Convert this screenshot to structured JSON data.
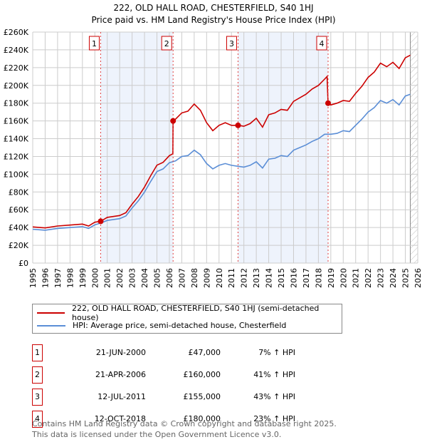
{
  "chart_data": {
    "type": "line",
    "title": "222, OLD HALL ROAD, CHESTERFIELD, S40 1HJ",
    "subtitle": "Price paid vs. HM Land Registry's House Price Index (HPI)",
    "xlim": [
      1995,
      2026
    ],
    "ylim": [
      0,
      260000
    ],
    "y_ticks": [
      0,
      20000,
      40000,
      60000,
      80000,
      100000,
      120000,
      140000,
      160000,
      180000,
      200000,
      220000,
      240000,
      260000
    ],
    "y_tick_labels": [
      "£0",
      "£20K",
      "£40K",
      "£60K",
      "£80K",
      "£100K",
      "£120K",
      "£140K",
      "£160K",
      "£180K",
      "£200K",
      "£220K",
      "£240K",
      "£260K"
    ],
    "x_ticks": [
      1995,
      1996,
      1997,
      1998,
      1999,
      2000,
      2001,
      2002,
      2003,
      2004,
      2005,
      2006,
      2007,
      2008,
      2009,
      2010,
      2011,
      2012,
      2013,
      2014,
      2015,
      2016,
      2017,
      2018,
      2019,
      2020,
      2021,
      2022,
      2023,
      2024,
      2025,
      2026
    ],
    "x_tick_labels": [
      "1995",
      "1996",
      "1997",
      "1998",
      "1999",
      "2000",
      "2001",
      "2002",
      "2003",
      "2004",
      "2005",
      "2006",
      "2007",
      "2008",
      "2009",
      "2010",
      "2011",
      "2012",
      "2013",
      "2014",
      "2015",
      "2016",
      "2017",
      "2018",
      "2019",
      "2020",
      "2021",
      "2022",
      "2023",
      "2024",
      "2025",
      "2026"
    ],
    "grid": true,
    "forecast_hatch_from": 2025.4,
    "shaded_ranges": [
      [
        2000.47,
        2006.3
      ],
      [
        2011.53,
        2018.78
      ]
    ],
    "series": [
      {
        "name": "222, OLD HALL ROAD, CHESTERFIELD, S40 1HJ (semi-detached house)",
        "color": "#cc0000",
        "x": [
          1995,
          1996,
          1997,
          1998,
          1999,
          1999.5,
          2000,
          2000.47,
          2001,
          2002,
          2002.5,
          2003,
          2003.5,
          2004,
          2004.5,
          2005,
          2005.5,
          2006,
          2006.28,
          2006.3,
          2006.5,
          2007,
          2007.5,
          2008,
          2008.5,
          2009,
          2009.5,
          2010,
          2010.5,
          2011,
          2011.53,
          2012,
          2012.5,
          2013,
          2013.5,
          2014,
          2014.5,
          2015,
          2015.5,
          2016,
          2016.5,
          2017,
          2017.5,
          2018,
          2018.5,
          2018.7,
          2018.78,
          2019,
          2019.5,
          2020,
          2020.5,
          2021,
          2021.5,
          2022,
          2022.5,
          2023,
          2023.5,
          2024,
          2024.5,
          2025,
          2025.4
        ],
        "y": [
          40700,
          39600,
          41700,
          42800,
          43900,
          41700,
          46000,
          47000,
          51400,
          53500,
          56700,
          66300,
          74900,
          85600,
          98400,
          110200,
          113400,
          120900,
          123000,
          160000,
          162000,
          169000,
          171000,
          179000,
          172000,
          158000,
          149000,
          155000,
          158000,
          155000,
          155000,
          154000,
          157000,
          163000,
          153000,
          167000,
          169000,
          173000,
          172000,
          182000,
          186000,
          190000,
          196000,
          200000,
          207000,
          210000,
          180000,
          178000,
          180000,
          183000,
          182000,
          191000,
          199000,
          209000,
          215000,
          225000,
          221000,
          226000,
          219000,
          231000,
          234000
        ]
      },
      {
        "name": "HPI: Average price, semi-detached house, Chesterfield",
        "color": "#5b8ed6",
        "x": [
          1995,
          1996,
          1997,
          1998,
          1999,
          1999.5,
          2000,
          2000.47,
          2001,
          2002,
          2002.5,
          2003,
          2003.5,
          2004,
          2004.5,
          2005,
          2005.5,
          2006,
          2006.5,
          2007,
          2007.5,
          2008,
          2008.5,
          2009,
          2009.5,
          2010,
          2010.5,
          2011,
          2011.5,
          2012,
          2012.5,
          2013,
          2013.5,
          2014,
          2014.5,
          2015,
          2015.5,
          2016,
          2016.5,
          2017,
          2017.5,
          2018,
          2018.5,
          2019,
          2019.5,
          2020,
          2020.5,
          2021,
          2021.5,
          2022,
          2022.5,
          2023,
          2023.5,
          2024,
          2024.5,
          2025,
          2025.4
        ],
        "y": [
          38000,
          37000,
          39000,
          40000,
          41000,
          39000,
          43000,
          45000,
          48000,
          50000,
          53000,
          62000,
          70000,
          80000,
          92000,
          103000,
          106000,
          113000,
          115000,
          120000,
          121000,
          127000,
          122000,
          112000,
          106000,
          110000,
          112000,
          110000,
          109000,
          108000,
          110000,
          114000,
          107000,
          117000,
          118000,
          121000,
          120000,
          127000,
          130000,
          133000,
          137000,
          140000,
          145000,
          145000,
          146000,
          149000,
          148000,
          155000,
          162000,
          170000,
          175000,
          183000,
          180000,
          184000,
          178000,
          188000,
          190000
        ]
      }
    ],
    "sales": [
      {
        "label": "1",
        "x": 2000.47,
        "y": 47000,
        "date": "21-JUN-2000",
        "price": "£47,000",
        "hpi": "7% ↑ HPI"
      },
      {
        "label": "2",
        "x": 2006.3,
        "y": 160000,
        "date": "21-APR-2006",
        "price": "£160,000",
        "hpi": "41% ↑ HPI"
      },
      {
        "label": "3",
        "x": 2011.53,
        "y": 155000,
        "date": "12-JUL-2011",
        "price": "£155,000",
        "hpi": "43% ↑ HPI"
      },
      {
        "label": "4",
        "x": 2018.78,
        "y": 180000,
        "date": "12-OCT-2018",
        "price": "£180,000",
        "hpi": "23% ↑ HPI"
      }
    ]
  },
  "legend": {
    "property": "222, OLD HALL ROAD, CHESTERFIELD, S40 1HJ (semi-detached house)",
    "hpi": "HPI: Average price, semi-detached house, Chesterfield"
  },
  "footer": {
    "line1": "Contains HM Land Registry data © Crown copyright and database right 2025.",
    "line2": "This data is licensed under the Open Government Licence v3.0."
  }
}
